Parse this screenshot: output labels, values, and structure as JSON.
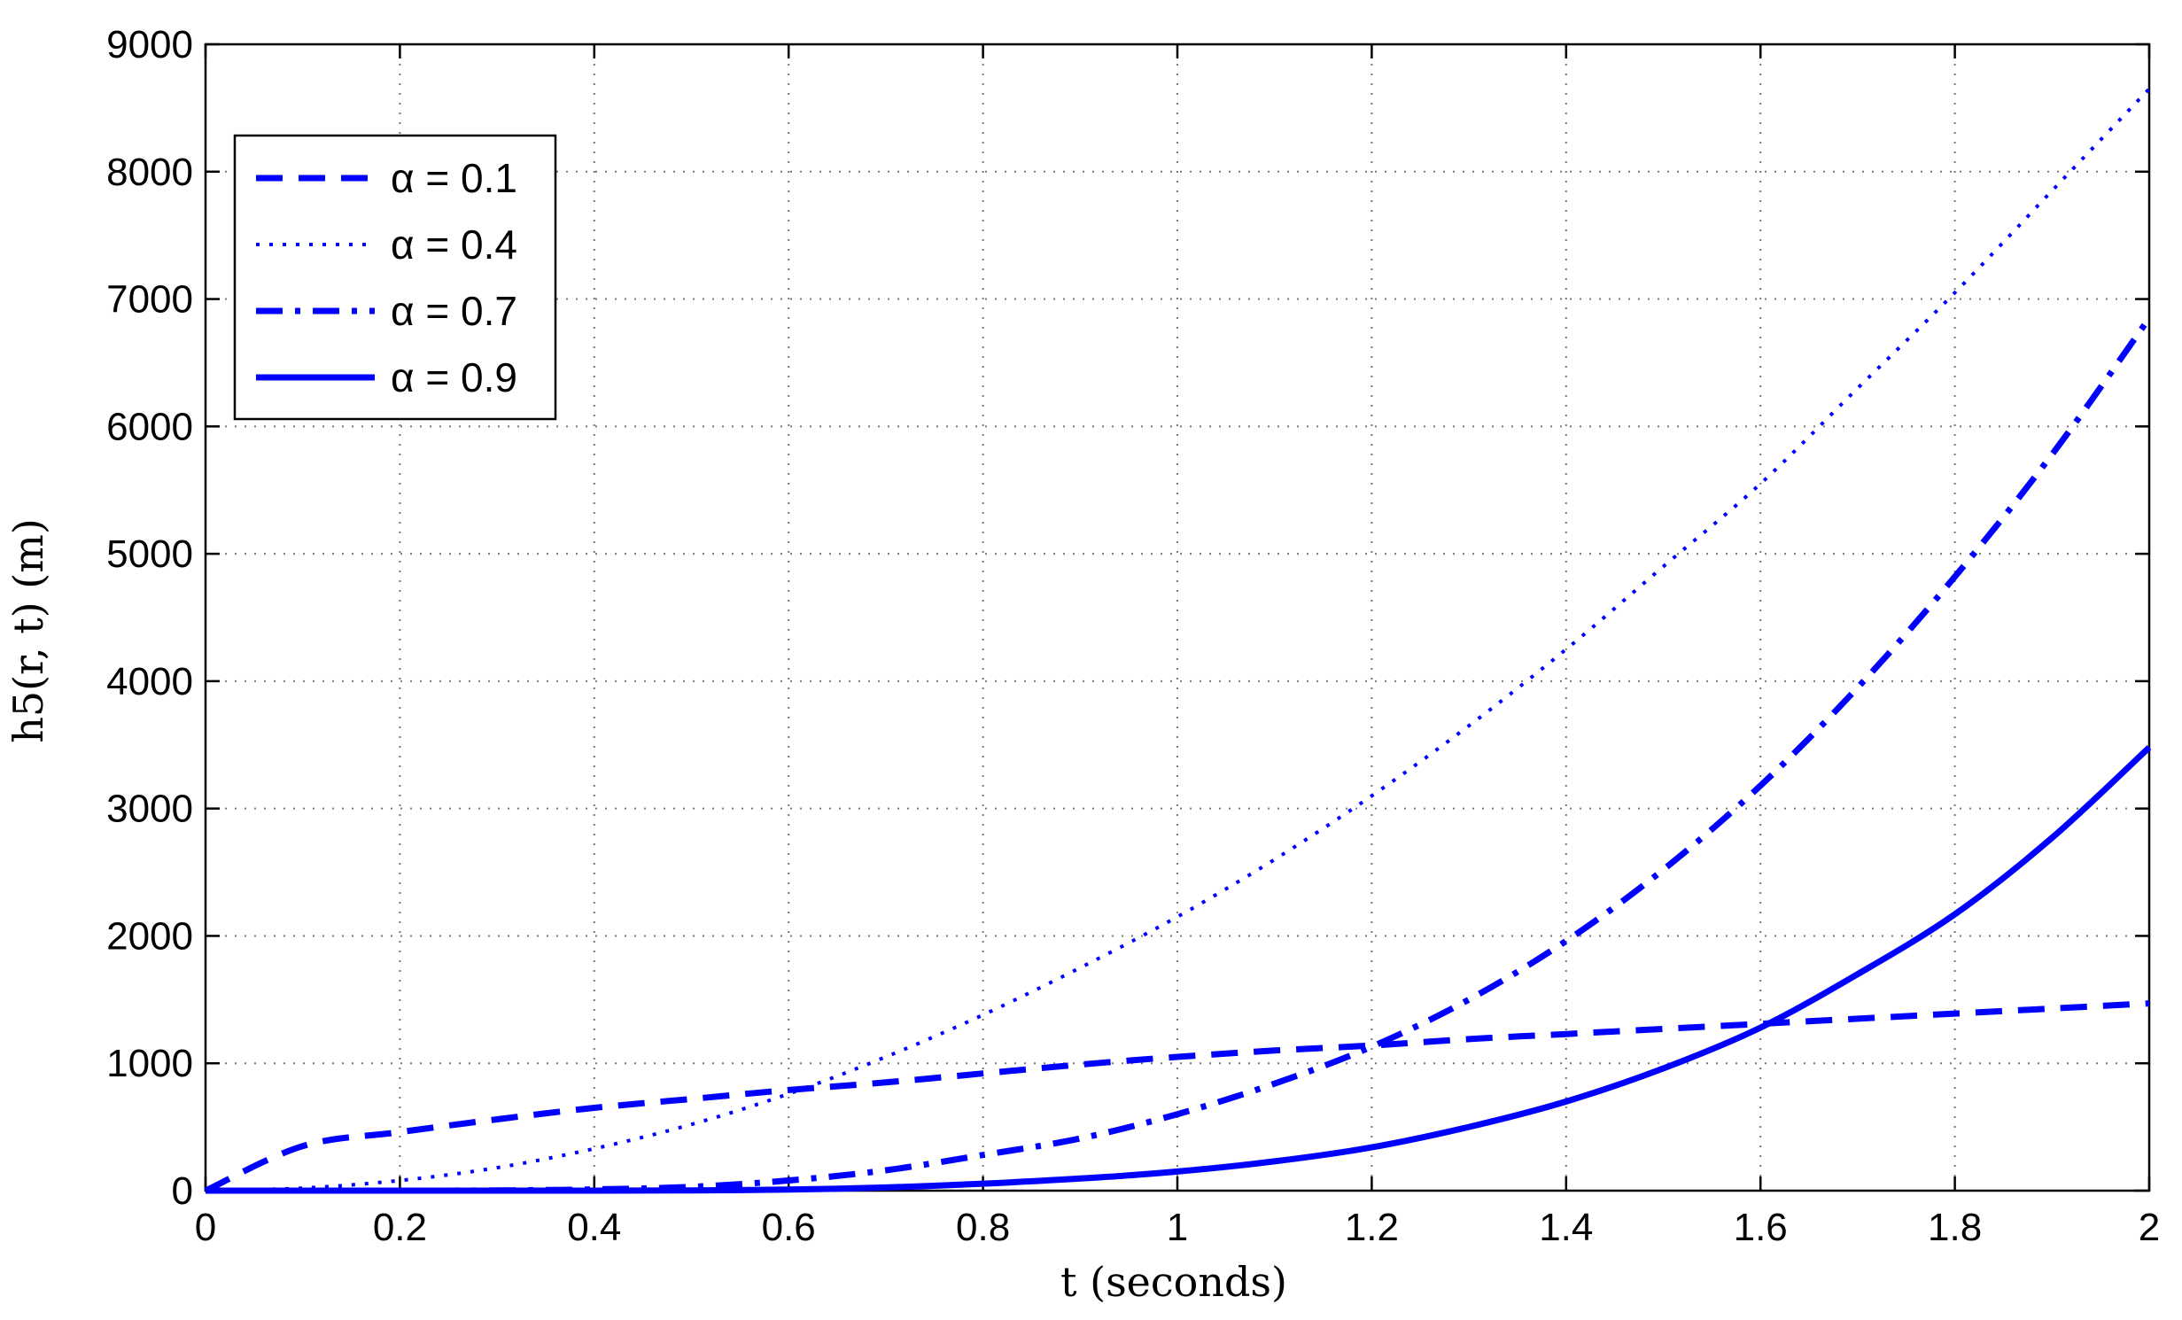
{
  "chart_data": {
    "type": "line",
    "xlabel": "t (seconds)",
    "ylabel": "h5(r, t) (m)",
    "xlim": [
      0,
      2
    ],
    "ylim": [
      0,
      9000
    ],
    "xticks": [
      0,
      0.2,
      0.4,
      0.6,
      0.8,
      1,
      1.2,
      1.4,
      1.6,
      1.8,
      2
    ],
    "xtick_labels": [
      "0",
      "0.2",
      "0.4",
      "0.6",
      "0.8",
      "1",
      "1.2",
      "1.4",
      "1.6",
      "1.8",
      "2"
    ],
    "yticks": [
      0,
      1000,
      2000,
      3000,
      4000,
      5000,
      6000,
      7000,
      8000,
      9000
    ],
    "ytick_labels": [
      "0",
      "1000",
      "2000",
      "3000",
      "4000",
      "5000",
      "6000",
      "7000",
      "8000",
      "9000"
    ],
    "grid": true,
    "legend_position": "top-left",
    "color": "#0000ff",
    "x": [
      0,
      0.1,
      0.2,
      0.3,
      0.4,
      0.5,
      0.6,
      0.7,
      0.8,
      0.9,
      1.0,
      1.1,
      1.2,
      1.3,
      1.4,
      1.5,
      1.6,
      1.7,
      1.8,
      1.9,
      2.0
    ],
    "series": [
      {
        "name": "α = 0.1",
        "style": "dashed",
        "values": [
          0,
          350,
          460,
          560,
          650,
          720,
          790,
          850,
          920,
          990,
          1050,
          1100,
          1140,
          1190,
          1230,
          1270,
          1310,
          1350,
          1390,
          1430,
          1470
        ]
      },
      {
        "name": "α = 0.4",
        "style": "dotted",
        "values": [
          0,
          20,
          80,
          180,
          330,
          520,
          760,
          1050,
          1380,
          1750,
          2150,
          2600,
          3100,
          3650,
          4250,
          4900,
          5550,
          6300,
          7050,
          7850,
          8650
        ]
      },
      {
        "name": "α = 0.7",
        "style": "dash-dot",
        "values": [
          0,
          0,
          0,
          2,
          10,
          30,
          80,
          160,
          280,
          410,
          600,
          840,
          1130,
          1500,
          1960,
          2520,
          3180,
          3950,
          4820,
          5780,
          6850
        ]
      },
      {
        "name": "α = 0.9",
        "style": "solid",
        "values": [
          0,
          0,
          0,
          0,
          0,
          2,
          8,
          25,
          55,
          95,
          150,
          230,
          340,
          500,
          700,
          960,
          1280,
          1700,
          2170,
          2770,
          3480
        ]
      }
    ]
  }
}
